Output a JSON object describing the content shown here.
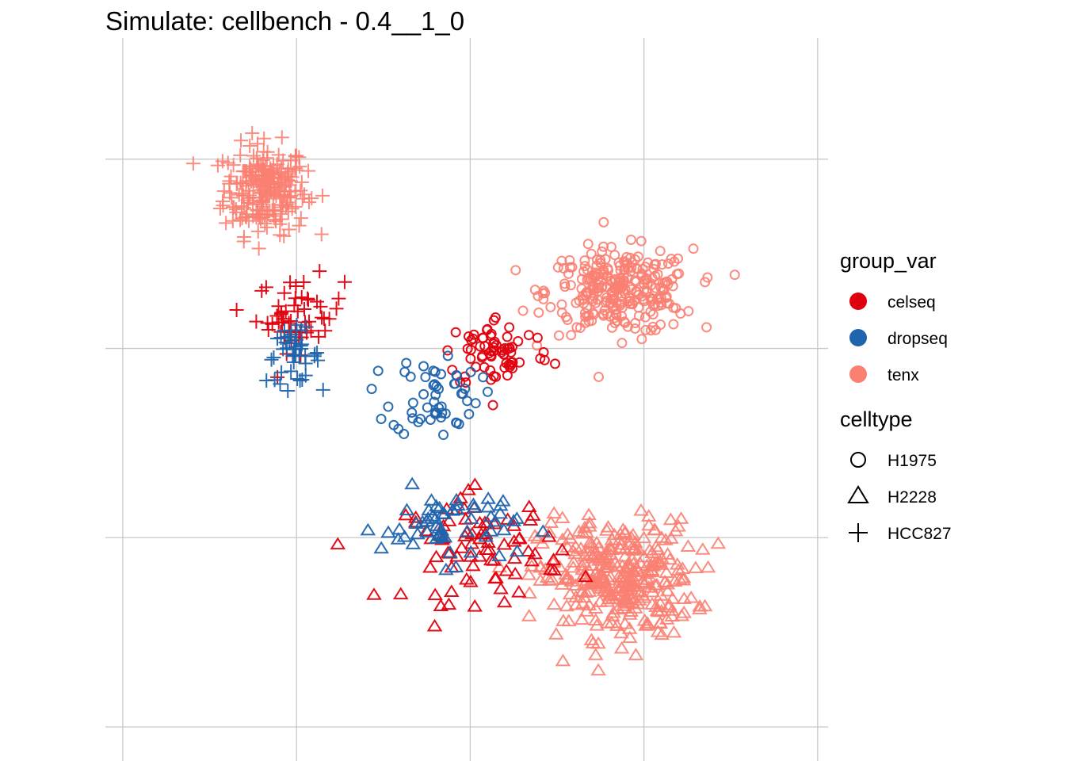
{
  "chart_data": {
    "type": "scatter",
    "title": "Simulate: cellbench - 0.4__1_0",
    "xlabel": "",
    "ylabel": "",
    "grid": true,
    "axis_tick_labels": false,
    "legend_position": "right",
    "legends": [
      {
        "title": "group_var",
        "aesthetic": "color",
        "entries": [
          {
            "label": "celseq",
            "color": "#E0000D"
          },
          {
            "label": "dropseq",
            "color": "#1F64AD"
          },
          {
            "label": "tenx",
            "color": "#FA8072"
          }
        ]
      },
      {
        "title": "celltype",
        "aesthetic": "shape",
        "entries": [
          {
            "label": "H1975",
            "shape": "circle"
          },
          {
            "label": "H2228",
            "shape": "triangle"
          },
          {
            "label": "HCC827",
            "shape": "plus"
          }
        ]
      }
    ],
    "clusters": [
      {
        "celltype": "HCC827",
        "group_var": "tenx",
        "approx_count": 230,
        "center": [
          -5.9,
          4.7
        ],
        "spread": [
          0.85,
          0.85
        ]
      },
      {
        "celltype": "HCC827",
        "group_var": "celseq",
        "approx_count": 55,
        "center": [
          -4.9,
          1.4
        ],
        "spread": [
          0.9,
          0.7
        ]
      },
      {
        "celltype": "HCC827",
        "group_var": "dropseq",
        "approx_count": 45,
        "center": [
          -5.1,
          0.3
        ],
        "spread": [
          0.55,
          0.5
        ]
      },
      {
        "celltype": "H1975",
        "group_var": "tenx",
        "approx_count": 280,
        "center": [
          4.3,
          2.0
        ],
        "spread": [
          1.5,
          0.8
        ]
      },
      {
        "celltype": "H1975",
        "group_var": "celseq",
        "approx_count": 70,
        "center": [
          0.8,
          0.4
        ],
        "spread": [
          1.1,
          0.7
        ]
      },
      {
        "celltype": "H1975",
        "group_var": "dropseq",
        "approx_count": 55,
        "center": [
          -1.0,
          -0.7
        ],
        "spread": [
          0.9,
          0.8
        ]
      },
      {
        "celltype": "H2228",
        "group_var": "tenx",
        "approx_count": 330,
        "center": [
          4.2,
          -5.6
        ],
        "spread": [
          1.6,
          1.1
        ]
      },
      {
        "celltype": "H2228",
        "group_var": "celseq",
        "approx_count": 80,
        "center": [
          0.4,
          -4.8
        ],
        "spread": [
          1.6,
          1.0
        ]
      },
      {
        "celltype": "H2228",
        "group_var": "dropseq",
        "approx_count": 60,
        "center": [
          -0.6,
          -4.2
        ],
        "spread": [
          1.4,
          0.7
        ]
      }
    ],
    "xlim": [
      -10.5,
      10.3
    ],
    "ylim": [
      -10.4,
      8.7
    ]
  }
}
